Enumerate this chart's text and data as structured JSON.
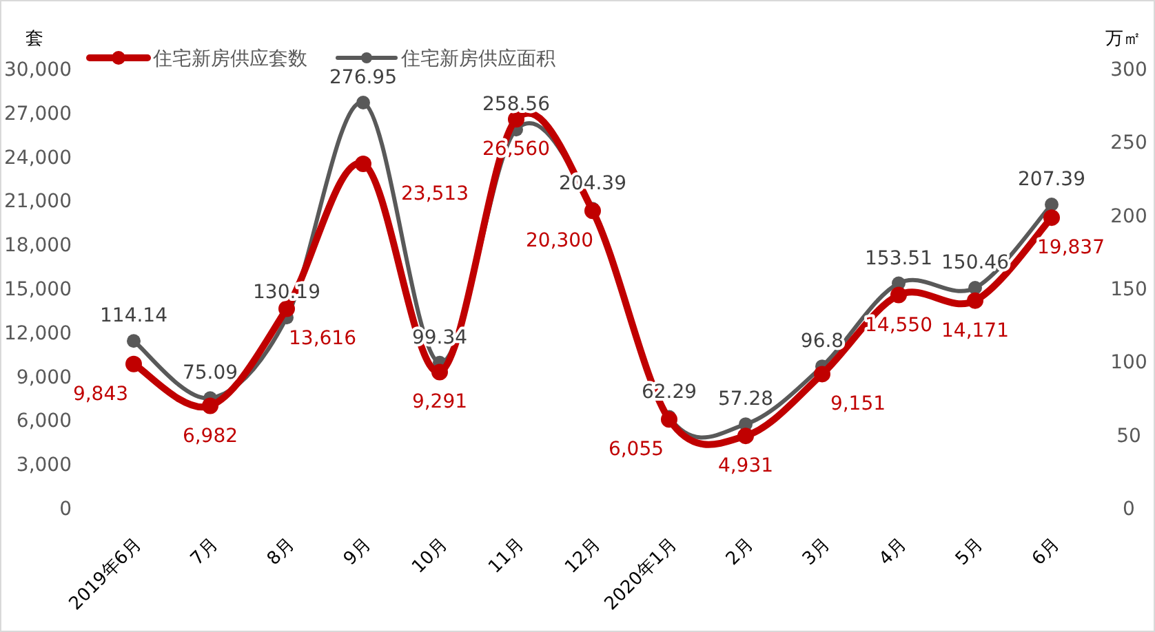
{
  "chart_data": {
    "type": "line",
    "categories": [
      "2019年6月",
      "7月",
      "8月",
      "9月",
      "10月",
      "11月",
      "12月",
      "2020年1月",
      "2月",
      "3月",
      "4月",
      "5月",
      "6月"
    ],
    "series": [
      {
        "name": "住宅新房供应套数",
        "color": "#c00000",
        "values": [
          9843,
          6982,
          13616,
          23513,
          9291,
          26560,
          20300,
          6055,
          4931,
          9151,
          14550,
          14171,
          19837
        ],
        "value_labels": [
          "9,843",
          "6,982",
          "13,616",
          "23,513",
          "9,291",
          "26,560",
          "20,300",
          "6,055",
          "4,931",
          "9,151",
          "14,550",
          "14,171",
          "19,837"
        ]
      },
      {
        "name": "住宅新房供应面积",
        "color": "#595959",
        "axis": "y2",
        "values": [
          114.14,
          75.09,
          130.19,
          276.95,
          99.34,
          258.56,
          204.39,
          62.29,
          57.28,
          96.8,
          153.51,
          150.46,
          207.39
        ],
        "value_labels": [
          "114.14",
          "75.09",
          "130.19",
          "276.95",
          "99.34",
          "258.56",
          "204.39",
          "62.29",
          "57.28",
          "96.8",
          "153.51",
          "150.46",
          "207.39"
        ]
      }
    ],
    "ylabel": "套",
    "y2label": "万㎡",
    "ylim": [
      0,
      30000
    ],
    "yticks": [
      {
        "value": 0,
        "label": "0"
      },
      {
        "value": 3000,
        "label": "3,000"
      },
      {
        "value": 6000,
        "label": "6,000"
      },
      {
        "value": 9000,
        "label": "9,000"
      },
      {
        "value": 12000,
        "label": "12,000"
      },
      {
        "value": 15000,
        "label": "15,000"
      },
      {
        "value": 18000,
        "label": "18,000"
      },
      {
        "value": 21000,
        "label": "21,000"
      },
      {
        "value": 24000,
        "label": "24,000"
      },
      {
        "value": 27000,
        "label": "27,000"
      },
      {
        "value": 30000,
        "label": "30,000"
      }
    ],
    "y2lim": [
      0,
      300
    ],
    "y2ticks": [
      0,
      50,
      100,
      150,
      200,
      250,
      300
    ],
    "legend": "top left",
    "marker": "circle",
    "line_style": "solid",
    "grid": false
  }
}
